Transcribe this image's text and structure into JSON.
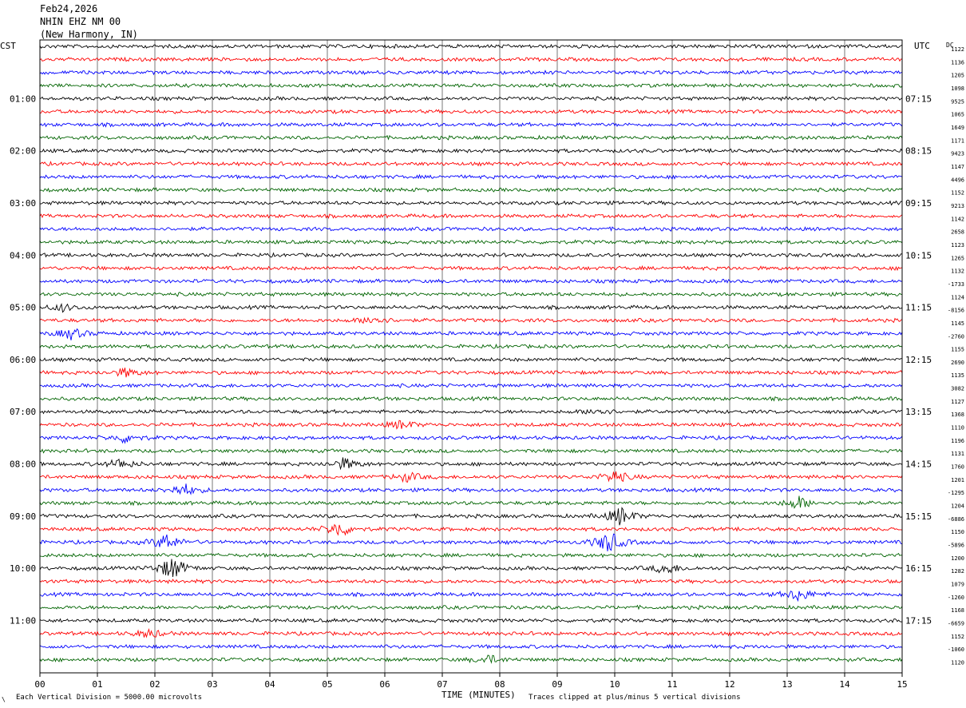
{
  "header": {
    "date": "Feb24,2026",
    "station": "NHIN EHZ NM 00",
    "location": "(New Harmony, IN)"
  },
  "left_timezone": "CST",
  "right_timezone": "UTC",
  "dc_label": "DC",
  "footer": {
    "scale_note": "Each Vertical Division = 5000.00 microvolts",
    "xaxis_title": "TIME (MINUTES)",
    "clip_note": "Traces clipped at plus/minus 5 vertical divisions"
  },
  "chart_data": {
    "type": "line",
    "title": "",
    "xlabel": "TIME (MINUTES)",
    "ylabel": "",
    "xlim": [
      0,
      15
    ],
    "x_ticks": [
      "00",
      "01",
      "02",
      "03",
      "04",
      "05",
      "06",
      "07",
      "08",
      "09",
      "10",
      "11",
      "12",
      "13",
      "14",
      "15"
    ],
    "grid": true,
    "trace_minutes": 15,
    "trace_colors": [
      "#000000",
      "#ff0000",
      "#0000ff",
      "#006400"
    ],
    "left_hour_labels": [
      "01:00",
      "02:00",
      "03:00",
      "04:00",
      "05:00",
      "06:00",
      "07:00",
      "08:00",
      "09:00",
      "10:00",
      "11:00"
    ],
    "right_hour_labels": [
      "07:15",
      "08:15",
      "09:15",
      "10:15",
      "11:15",
      "12:15",
      "13:15",
      "14:15",
      "15:15",
      "16:15",
      "17:15"
    ],
    "dc_offsets": [
      "1122",
      "1136",
      "1205",
      "1098",
      "9525",
      "1065",
      "1649",
      "1171",
      "9423",
      "1147",
      "4496",
      "1152",
      "9213",
      "1142",
      "2658",
      "1123",
      "1265",
      "1132",
      "-1733",
      "1124",
      "-8156",
      "1145",
      "-2760",
      "1155",
      "2690",
      "1135",
      "3082",
      "1127",
      "1368",
      "1110",
      "1196",
      "1131",
      "1760",
      "1201",
      "-1295",
      "1204",
      "-6886",
      "1150",
      "-5896",
      "1200",
      "1282",
      "1079",
      "-1260",
      "1168",
      "-6659",
      "1152",
      "-1060",
      "1120"
    ],
    "events": [
      {
        "trace": 20,
        "minute": 0.4,
        "amplitude": 1.0
      },
      {
        "trace": 22,
        "minute": 0.55,
        "amplitude": 1.6
      },
      {
        "trace": 21,
        "minute": 5.8,
        "amplitude": 1.3
      },
      {
        "trace": 25,
        "minute": 1.5,
        "amplitude": 1.2
      },
      {
        "trace": 29,
        "minute": 6.3,
        "amplitude": 1.2
      },
      {
        "trace": 28,
        "minute": 9.7,
        "amplitude": 1.0
      },
      {
        "trace": 30,
        "minute": 1.5,
        "amplitude": 1.3
      },
      {
        "trace": 32,
        "minute": 1.4,
        "amplitude": 1.4
      },
      {
        "trace": 32,
        "minute": 5.3,
        "amplitude": 1.6
      },
      {
        "trace": 33,
        "minute": 6.4,
        "amplitude": 1.3
      },
      {
        "trace": 33,
        "minute": 10.0,
        "amplitude": 1.8
      },
      {
        "trace": 34,
        "minute": 2.5,
        "amplitude": 1.8
      },
      {
        "trace": 35,
        "minute": 13.2,
        "amplitude": 1.8
      },
      {
        "trace": 36,
        "minute": 10.1,
        "amplitude": 2.6
      },
      {
        "trace": 37,
        "minute": 5.2,
        "amplitude": 2.2
      },
      {
        "trace": 38,
        "minute": 9.9,
        "amplitude": 3.2
      },
      {
        "trace": 38,
        "minute": 2.2,
        "amplitude": 2.4
      },
      {
        "trace": 40,
        "minute": 2.3,
        "amplitude": 3.4
      },
      {
        "trace": 40,
        "minute": 10.9,
        "amplitude": 1.6
      },
      {
        "trace": 42,
        "minute": 13.2,
        "amplitude": 1.8
      },
      {
        "trace": 45,
        "minute": 1.9,
        "amplitude": 1.2
      },
      {
        "trace": 47,
        "minute": 7.8,
        "amplitude": 1.2
      }
    ]
  }
}
